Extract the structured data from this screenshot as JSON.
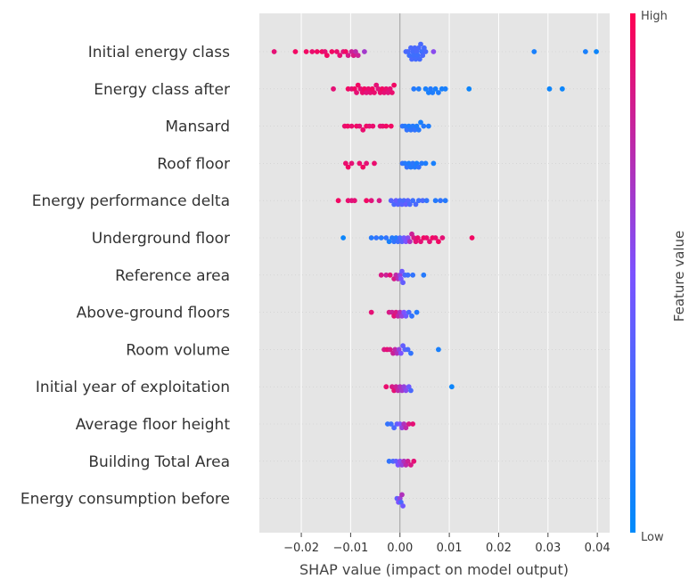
{
  "chart_data": {
    "type": "scatter",
    "subtype": "shap-beeswarm",
    "title": "",
    "xlabel": "SHAP value (impact on model output)",
    "xlim": [
      -0.0285,
      0.0425
    ],
    "xticks": [
      -0.02,
      -0.01,
      0.0,
      0.01,
      0.02,
      0.03,
      0.04
    ],
    "xtick_labels": [
      "−0.02",
      "−0.01",
      "0.00",
      "0.01",
      "0.02",
      "0.03",
      "0.04"
    ],
    "grid": true,
    "colorbar": {
      "title": "Feature value",
      "high_label": "High",
      "low_label": "Low",
      "low_color": "#008bfb",
      "mid_color": "#7c52ff",
      "high_color": "#ff0052"
    },
    "features": [
      {
        "name": "Initial energy class",
        "points": [
          [
            -0.0255,
            0.9
          ],
          [
            -0.0212,
            0.95
          ],
          [
            -0.019,
            0.95
          ],
          [
            -0.0178,
            0.92
          ],
          [
            -0.0168,
            0.95
          ],
          [
            -0.0158,
            0.95
          ],
          [
            -0.0152,
            0.9
          ],
          [
            -0.0148,
            0.95
          ],
          [
            -0.0138,
            0.95
          ],
          [
            -0.0128,
            0.92
          ],
          [
            -0.0122,
            0.9
          ],
          [
            -0.0115,
            0.88
          ],
          [
            -0.011,
            0.95
          ],
          [
            -0.0105,
            0.85
          ],
          [
            -0.0098,
            0.8
          ],
          [
            -0.0094,
            0.85
          ],
          [
            -0.009,
            0.75
          ],
          [
            -0.0085,
            0.8
          ],
          [
            -0.0072,
            0.65
          ],
          [
            0.0012,
            0.3
          ],
          [
            0.0016,
            0.3
          ],
          [
            0.0019,
            0.25
          ],
          [
            0.0022,
            0.3
          ],
          [
            0.0024,
            0.3
          ],
          [
            0.0026,
            0.28
          ],
          [
            0.0028,
            0.25
          ],
          [
            0.003,
            0.3
          ],
          [
            0.0032,
            0.28
          ],
          [
            0.0034,
            0.3
          ],
          [
            0.0036,
            0.25
          ],
          [
            0.0038,
            0.3
          ],
          [
            0.004,
            0.28
          ],
          [
            0.0042,
            0.3
          ],
          [
            0.0044,
            0.25
          ],
          [
            0.0046,
            0.3
          ],
          [
            0.0049,
            0.28
          ],
          [
            0.0052,
            0.3
          ],
          [
            0.0068,
            0.55
          ],
          [
            0.0272,
            0.1
          ],
          [
            0.0376,
            0.1
          ],
          [
            0.0398,
            0.05
          ]
        ]
      },
      {
        "name": "Energy class after",
        "points": [
          [
            -0.0135,
            0.9
          ],
          [
            -0.0105,
            0.95
          ],
          [
            -0.0098,
            0.9
          ],
          [
            -0.0092,
            0.95
          ],
          [
            -0.0088,
            0.9
          ],
          [
            -0.0085,
            0.95
          ],
          [
            -0.008,
            0.9
          ],
          [
            -0.0076,
            0.92
          ],
          [
            -0.0072,
            0.95
          ],
          [
            -0.0068,
            0.88
          ],
          [
            -0.0064,
            0.92
          ],
          [
            -0.006,
            0.9
          ],
          [
            -0.0056,
            0.95
          ],
          [
            -0.0052,
            0.92
          ],
          [
            -0.0048,
            0.9
          ],
          [
            -0.0044,
            0.88
          ],
          [
            -0.004,
            0.92
          ],
          [
            -0.0036,
            0.95
          ],
          [
            -0.0032,
            0.9
          ],
          [
            -0.0028,
            0.92
          ],
          [
            -0.0024,
            0.88
          ],
          [
            -0.002,
            0.9
          ],
          [
            -0.0016,
            0.92
          ],
          [
            -0.0012,
            0.95
          ],
          [
            0.0028,
            0.15
          ],
          [
            0.0038,
            0.12
          ],
          [
            0.0052,
            0.1
          ],
          [
            0.0058,
            0.1
          ],
          [
            0.0062,
            0.15
          ],
          [
            0.0066,
            0.12
          ],
          [
            0.0072,
            0.1
          ],
          [
            0.0078,
            0.12
          ],
          [
            0.0085,
            0.1
          ],
          [
            0.0092,
            0.1
          ],
          [
            0.014,
            0.05
          ],
          [
            0.0303,
            0.05
          ],
          [
            0.0329,
            0.05
          ]
        ]
      },
      {
        "name": "Mansard",
        "points": [
          [
            -0.0112,
            0.92
          ],
          [
            -0.0106,
            0.95
          ],
          [
            -0.0098,
            0.92
          ],
          [
            -0.0088,
            0.95
          ],
          [
            -0.0082,
            0.9
          ],
          [
            -0.0075,
            0.92
          ],
          [
            -0.0068,
            0.95
          ],
          [
            -0.0062,
            0.9
          ],
          [
            -0.0055,
            0.92
          ],
          [
            -0.004,
            0.9
          ],
          [
            -0.0035,
            0.92
          ],
          [
            -0.0028,
            0.95
          ],
          [
            -0.0018,
            0.95
          ],
          [
            0.0005,
            0.2
          ],
          [
            0.001,
            0.15
          ],
          [
            0.0014,
            0.2
          ],
          [
            0.0018,
            0.12
          ],
          [
            0.0022,
            0.18
          ],
          [
            0.0026,
            0.15
          ],
          [
            0.003,
            0.2
          ],
          [
            0.0034,
            0.12
          ],
          [
            0.0038,
            0.15
          ],
          [
            0.0042,
            0.1
          ],
          [
            0.0048,
            0.15
          ],
          [
            0.0058,
            0.12
          ]
        ]
      },
      {
        "name": "Roof floor",
        "points": [
          [
            -0.011,
            0.92
          ],
          [
            -0.0105,
            0.95
          ],
          [
            -0.0098,
            0.9
          ],
          [
            -0.0082,
            0.92
          ],
          [
            -0.0075,
            0.95
          ],
          [
            -0.0068,
            0.9
          ],
          [
            -0.0052,
            0.92
          ],
          [
            0.0005,
            0.2
          ],
          [
            0.001,
            0.15
          ],
          [
            0.0014,
            0.2
          ],
          [
            0.0018,
            0.12
          ],
          [
            0.0022,
            0.15
          ],
          [
            0.0026,
            0.18
          ],
          [
            0.003,
            0.15
          ],
          [
            0.0034,
            0.12
          ],
          [
            0.0038,
            0.2
          ],
          [
            0.0044,
            0.15
          ],
          [
            0.0052,
            0.12
          ],
          [
            0.0068,
            0.1
          ]
        ]
      },
      {
        "name": "Energy performance delta",
        "points": [
          [
            -0.0125,
            0.95
          ],
          [
            -0.0105,
            0.92
          ],
          [
            -0.0098,
            0.88
          ],
          [
            -0.0092,
            0.9
          ],
          [
            -0.0068,
            0.95
          ],
          [
            -0.0058,
            0.88
          ],
          [
            -0.0042,
            0.85
          ],
          [
            -0.0018,
            0.35
          ],
          [
            -0.0012,
            0.3
          ],
          [
            -0.0008,
            0.4
          ],
          [
            -0.0004,
            0.35
          ],
          [
            0.0,
            0.3
          ],
          [
            0.0004,
            0.35
          ],
          [
            0.0008,
            0.3
          ],
          [
            0.0012,
            0.4
          ],
          [
            0.0016,
            0.35
          ],
          [
            0.002,
            0.3
          ],
          [
            0.0026,
            0.25
          ],
          [
            0.0032,
            0.3
          ],
          [
            0.0038,
            0.25
          ],
          [
            0.0046,
            0.3
          ],
          [
            0.0054,
            0.2
          ],
          [
            0.0072,
            0.15
          ],
          [
            0.0082,
            0.2
          ],
          [
            0.0092,
            0.15
          ]
        ]
      },
      {
        "name": "Underground floor",
        "points": [
          [
            -0.0115,
            0.05
          ],
          [
            -0.0058,
            0.15
          ],
          [
            -0.0048,
            0.2
          ],
          [
            -0.0038,
            0.15
          ],
          [
            -0.0028,
            0.2
          ],
          [
            -0.0022,
            0.1
          ],
          [
            -0.0016,
            0.15
          ],
          [
            -0.0012,
            0.2
          ],
          [
            -0.0008,
            0.15
          ],
          [
            -0.0004,
            0.25
          ],
          [
            0.0,
            0.3
          ],
          [
            0.0004,
            0.35
          ],
          [
            0.0008,
            0.45
          ],
          [
            0.0012,
            0.5
          ],
          [
            0.0016,
            0.55
          ],
          [
            0.002,
            0.7
          ],
          [
            0.0024,
            0.8
          ],
          [
            0.0028,
            0.85
          ],
          [
            0.0032,
            0.9
          ],
          [
            0.0036,
            0.92
          ],
          [
            0.0042,
            0.9
          ],
          [
            0.0048,
            0.95
          ],
          [
            0.0054,
            0.92
          ],
          [
            0.006,
            0.9
          ],
          [
            0.0066,
            0.95
          ],
          [
            0.0072,
            0.92
          ],
          [
            0.0078,
            0.95
          ],
          [
            0.0086,
            0.9
          ],
          [
            0.0146,
            0.95
          ]
        ]
      },
      {
        "name": "Reference area",
        "points": [
          [
            -0.0038,
            0.85
          ],
          [
            -0.0028,
            0.8
          ],
          [
            -0.002,
            0.9
          ],
          [
            -0.0012,
            0.85
          ],
          [
            -0.0008,
            0.75
          ],
          [
            -0.0004,
            0.7
          ],
          [
            0.0,
            0.6
          ],
          [
            0.0002,
            0.5
          ],
          [
            0.0004,
            0.45
          ],
          [
            0.0006,
            0.4
          ],
          [
            0.001,
            0.3
          ],
          [
            0.0016,
            0.25
          ],
          [
            0.0026,
            0.2
          ],
          [
            0.0048,
            0.15
          ]
        ]
      },
      {
        "name": "Above-ground floors",
        "points": [
          [
            -0.0058,
            0.9
          ],
          [
            -0.0022,
            0.85
          ],
          [
            -0.0016,
            0.8
          ],
          [
            -0.0012,
            0.9
          ],
          [
            -0.0008,
            0.85
          ],
          [
            -0.0004,
            0.75
          ],
          [
            0.0,
            0.7
          ],
          [
            0.0004,
            0.6
          ],
          [
            0.0008,
            0.5
          ],
          [
            0.0012,
            0.45
          ],
          [
            0.0018,
            0.3
          ],
          [
            0.0024,
            0.2
          ],
          [
            0.0034,
            0.15
          ]
        ]
      },
      {
        "name": "Room volume",
        "points": [
          [
            -0.0032,
            0.85
          ],
          [
            -0.0026,
            0.9
          ],
          [
            -0.002,
            0.85
          ],
          [
            -0.0014,
            0.8
          ],
          [
            -0.001,
            0.75
          ],
          [
            -0.0006,
            0.7
          ],
          [
            -0.0002,
            0.6
          ],
          [
            0.0002,
            0.5
          ],
          [
            0.0006,
            0.4
          ],
          [
            0.001,
            0.35
          ],
          [
            0.0016,
            0.3
          ],
          [
            0.0022,
            0.2
          ],
          [
            0.0078,
            0.1
          ]
        ]
      },
      {
        "name": "Initial year of exploitation",
        "points": [
          [
            -0.0028,
            0.92
          ],
          [
            -0.0016,
            0.85
          ],
          [
            -0.0012,
            0.9
          ],
          [
            -0.0008,
            0.8
          ],
          [
            -0.0004,
            0.75
          ],
          [
            0.0,
            0.7
          ],
          [
            0.0004,
            0.65
          ],
          [
            0.0008,
            0.6
          ],
          [
            0.0012,
            0.55
          ],
          [
            0.0018,
            0.45
          ],
          [
            0.0022,
            0.3
          ],
          [
            0.0105,
            0.05
          ]
        ]
      },
      {
        "name": "Average floor height",
        "points": [
          [
            -0.0025,
            0.2
          ],
          [
            -0.0018,
            0.25
          ],
          [
            -0.0012,
            0.3
          ],
          [
            -0.0006,
            0.4
          ],
          [
            0.0,
            0.5
          ],
          [
            0.0004,
            0.6
          ],
          [
            0.0008,
            0.7
          ],
          [
            0.0012,
            0.75
          ],
          [
            0.0018,
            0.85
          ],
          [
            0.0026,
            0.9
          ]
        ]
      },
      {
        "name": "Building Total Area",
        "points": [
          [
            -0.0022,
            0.2
          ],
          [
            -0.0014,
            0.3
          ],
          [
            -0.0008,
            0.4
          ],
          [
            -0.0004,
            0.5
          ],
          [
            0.0,
            0.55
          ],
          [
            0.0004,
            0.6
          ],
          [
            0.0008,
            0.7
          ],
          [
            0.0012,
            0.75
          ],
          [
            0.0016,
            0.8
          ],
          [
            0.0022,
            0.85
          ],
          [
            0.0028,
            0.9
          ]
        ]
      },
      {
        "name": "Energy consumption before",
        "points": [
          [
            -0.0006,
            0.4
          ],
          [
            -0.0003,
            0.5
          ],
          [
            0.0,
            0.6
          ],
          [
            0.0002,
            0.3
          ],
          [
            0.0004,
            0.7
          ],
          [
            0.0006,
            0.45
          ]
        ]
      }
    ]
  }
}
